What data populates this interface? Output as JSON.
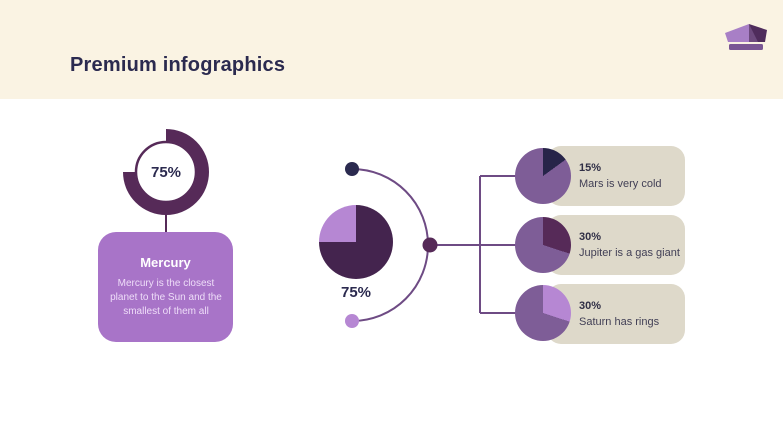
{
  "slide": {
    "title": "Premium infographics"
  },
  "icons": {
    "crown": "crown-icon"
  },
  "palette": {
    "cream": "#faf3e3",
    "navy": "#2b2a4f",
    "plum": "#562a58",
    "pie_dark": "#44244e",
    "light_purple": "#a874c8",
    "lavender": "#b687d3",
    "mid_purple": "#7e5d97",
    "slice_navy": "#272449",
    "line": "#6e4b84",
    "card_beige": "#ded9ca",
    "text_dark": "#413f55",
    "pct_dark": "#302f46",
    "card_desc": "#eeddf8",
    "crown_light": "#a87fc6",
    "crown_mid": "#6d4a7e",
    "crown_dark": "#4f2c5c",
    "crown_band": "#7a5694"
  },
  "left_panel": {
    "donut": {
      "value_pct": 75,
      "label": "75%"
    },
    "card": {
      "title": "Mercury",
      "description": "Mercury is the closest planet to the Sun and the smallest of them all"
    }
  },
  "center": {
    "pie": {
      "value_pct": 75,
      "label": "75%",
      "slice_color": "pie_dark",
      "base_color": "lavender"
    },
    "dots": [
      "navy",
      "plum",
      "lavender"
    ]
  },
  "right_panel": {
    "items": [
      {
        "pct_label": "15%",
        "value_pct": 15,
        "description": "Mars is very cold",
        "slice_color": "slice_navy",
        "base_color": "mid_purple"
      },
      {
        "pct_label": "30%",
        "value_pct": 30,
        "description": "Jupiter is a gas giant",
        "slice_color": "plum",
        "base_color": "mid_purple"
      },
      {
        "pct_label": "30%",
        "value_pct": 30,
        "description": "Saturn has rings",
        "slice_color": "lavender",
        "base_color": "mid_purple"
      }
    ]
  },
  "chart_data": [
    {
      "type": "pie",
      "variant": "donut",
      "label": "75%",
      "series": [
        {
          "name": "filled",
          "value": 75
        },
        {
          "name": "empty",
          "value": 25
        }
      ]
    },
    {
      "type": "pie",
      "label": "75%",
      "series": [
        {
          "name": "dark",
          "value": 75
        },
        {
          "name": "light",
          "value": 25
        }
      ]
    },
    {
      "type": "pie",
      "label": "15%",
      "caption": "Mars is very cold",
      "series": [
        {
          "name": "slice",
          "value": 15
        },
        {
          "name": "base",
          "value": 85
        }
      ]
    },
    {
      "type": "pie",
      "label": "30%",
      "caption": "Jupiter is a gas giant",
      "series": [
        {
          "name": "slice",
          "value": 30
        },
        {
          "name": "base",
          "value": 70
        }
      ]
    },
    {
      "type": "pie",
      "label": "30%",
      "caption": "Saturn has rings",
      "series": [
        {
          "name": "slice",
          "value": 30
        },
        {
          "name": "base",
          "value": 70
        }
      ]
    }
  ]
}
